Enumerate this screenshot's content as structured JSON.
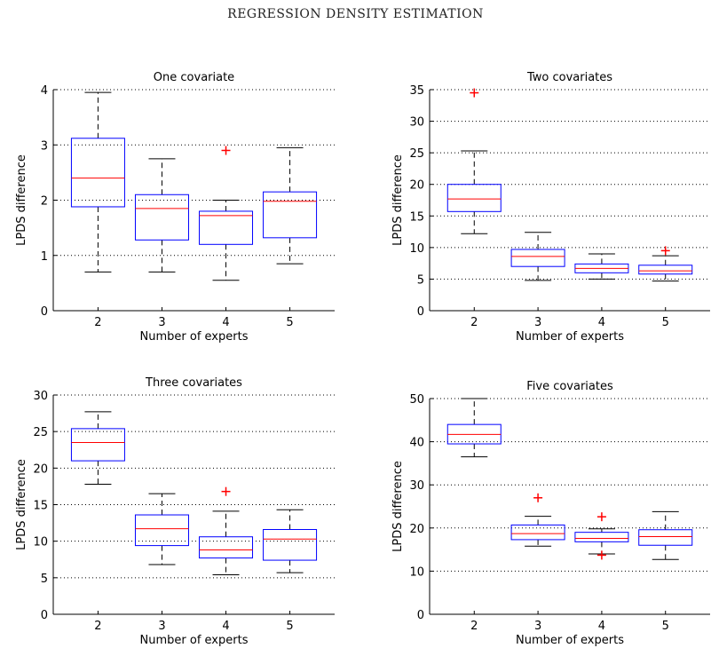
{
  "header": {
    "text": "REGRESSION DENSITY ESTIMATION"
  },
  "watermark": {
    "text": ""
  },
  "colors": {
    "box": "#0000ff",
    "median": "#ff0000",
    "whisker": "#000000",
    "outlier": "#ff0000",
    "grid": "#000000"
  },
  "chart_data": [
    {
      "type": "box",
      "title": "One covariate",
      "xlabel": "Number of experts",
      "ylabel": "LPDS difference",
      "categories": [
        "2",
        "3",
        "4",
        "5"
      ],
      "ylim": [
        0,
        4
      ],
      "yticks": [
        0,
        1,
        2,
        3,
        4
      ],
      "grid": true,
      "boxes": [
        {
          "min": 0.7,
          "q1": 1.88,
          "median": 2.4,
          "q3": 3.12,
          "max": 3.95,
          "outliers": []
        },
        {
          "min": 0.7,
          "q1": 1.28,
          "median": 1.85,
          "q3": 2.1,
          "max": 2.75,
          "outliers": []
        },
        {
          "min": 0.55,
          "q1": 1.2,
          "median": 1.72,
          "q3": 1.8,
          "max": 2.0,
          "outliers": [
            2.9
          ]
        },
        {
          "min": 0.85,
          "q1": 1.32,
          "median": 1.98,
          "q3": 2.15,
          "max": 2.95,
          "outliers": []
        }
      ]
    },
    {
      "type": "box",
      "title": "Two covariates",
      "xlabel": "Number of experts",
      "ylabel": "LPDS difference",
      "categories": [
        "2",
        "3",
        "4",
        "5"
      ],
      "ylim": [
        0,
        35
      ],
      "yticks": [
        0,
        5,
        10,
        15,
        20,
        25,
        30,
        35
      ],
      "grid": true,
      "boxes": [
        {
          "min": 12.2,
          "q1": 15.7,
          "median": 17.7,
          "q3": 20.0,
          "max": 25.3,
          "outliers": [
            34.5
          ]
        },
        {
          "min": 4.8,
          "q1": 7.0,
          "median": 8.6,
          "q3": 9.7,
          "max": 12.4,
          "outliers": []
        },
        {
          "min": 5.0,
          "q1": 6.0,
          "median": 6.7,
          "q3": 7.4,
          "max": 9.0,
          "outliers": []
        },
        {
          "min": 4.7,
          "q1": 5.8,
          "median": 6.3,
          "q3": 7.2,
          "max": 8.7,
          "outliers": [
            9.5
          ]
        }
      ]
    },
    {
      "type": "box",
      "title": "Three covariates",
      "xlabel": "Number of experts",
      "ylabel": "LPDS difference",
      "categories": [
        "2",
        "3",
        "4",
        "5"
      ],
      "ylim": [
        0,
        30
      ],
      "yticks": [
        0,
        5,
        10,
        15,
        20,
        25,
        30
      ],
      "grid": true,
      "boxes": [
        {
          "min": 17.8,
          "q1": 21.0,
          "median": 23.5,
          "q3": 25.4,
          "max": 27.7,
          "outliers": []
        },
        {
          "min": 6.8,
          "q1": 9.4,
          "median": 11.7,
          "q3": 13.6,
          "max": 16.5,
          "outliers": []
        },
        {
          "min": 5.4,
          "q1": 7.7,
          "median": 8.8,
          "q3": 10.6,
          "max": 14.1,
          "outliers": [
            16.8
          ]
        },
        {
          "min": 5.7,
          "q1": 7.4,
          "median": 10.3,
          "q3": 11.6,
          "max": 14.3,
          "outliers": []
        }
      ]
    },
    {
      "type": "box",
      "title": "Five covariates",
      "xlabel": "Number of experts",
      "ylabel": "LPDS difference",
      "categories": [
        "2",
        "3",
        "4",
        "5"
      ],
      "ylim": [
        0,
        50
      ],
      "yticks": [
        0,
        10,
        20,
        30,
        40,
        50
      ],
      "grid": true,
      "boxes": [
        {
          "min": 36.5,
          "q1": 39.5,
          "median": 41.7,
          "q3": 44.0,
          "max": 50.0,
          "outliers": []
        },
        {
          "min": 15.8,
          "q1": 17.3,
          "median": 18.7,
          "q3": 20.7,
          "max": 22.7,
          "outliers": [
            27.0
          ]
        },
        {
          "min": 14.0,
          "q1": 16.8,
          "median": 17.6,
          "q3": 19.0,
          "max": 19.8,
          "outliers": [
            22.6,
            13.7
          ]
        },
        {
          "min": 12.7,
          "q1": 16.0,
          "median": 18.0,
          "q3": 19.6,
          "max": 23.8,
          "outliers": []
        }
      ]
    }
  ]
}
